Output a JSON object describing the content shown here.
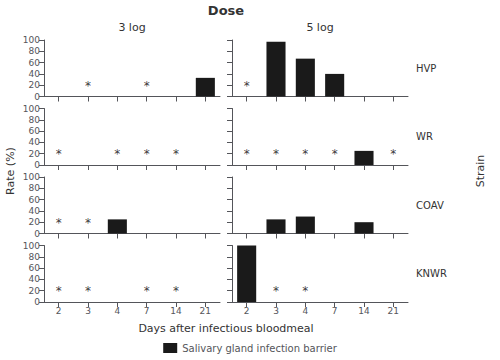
{
  "chart_data": {
    "type": "bar",
    "title": "Dose",
    "xlabel": "Days after infectious bloodmeal",
    "ylabel": "Rate (%)",
    "row_label": "Strain",
    "columns": [
      "3 log",
      "5 log"
    ],
    "rows": [
      "HVP",
      "WR",
      "COAV",
      "KNWR"
    ],
    "categories": [
      "2",
      "3",
      "4",
      "7",
      "14",
      "21"
    ],
    "series": [
      {
        "name": "Salivary gland infection barrier",
        "color": "#1a1a1a"
      }
    ],
    "ylim": [
      0,
      100
    ],
    "yticks": [
      0,
      20,
      40,
      60,
      80,
      100
    ],
    "grid": false,
    "legend": "bottom",
    "panels": [
      {
        "row": "HVP",
        "column": "3 log",
        "values": [
          0,
          0,
          0,
          0,
          0,
          33
        ],
        "annotations": [
          {
            "x": "3",
            "y": 8,
            "text": "*"
          },
          {
            "x": "7",
            "y": 8,
            "text": "*"
          }
        ]
      },
      {
        "row": "WR",
        "column": "3 log",
        "values": [
          0,
          0,
          0,
          0,
          0,
          0
        ],
        "annotations": [
          {
            "x": "2",
            "y": 8,
            "text": "*"
          },
          {
            "x": "4",
            "y": 8,
            "text": "*"
          },
          {
            "x": "7",
            "y": 8,
            "text": "*"
          },
          {
            "x": "14",
            "y": 8,
            "text": "*"
          }
        ]
      },
      {
        "row": "COAV",
        "column": "3 log",
        "values": [
          0,
          0,
          25,
          0,
          0,
          0
        ],
        "annotations": [
          {
            "x": "2",
            "y": 8,
            "text": "*"
          },
          {
            "x": "3",
            "y": 8,
            "text": "*"
          }
        ]
      },
      {
        "row": "KNWR",
        "column": "3 log",
        "values": [
          0,
          0,
          0,
          0,
          0,
          0
        ],
        "annotations": [
          {
            "x": "2",
            "y": 8,
            "text": "*"
          },
          {
            "x": "3",
            "y": 8,
            "text": "*"
          },
          {
            "x": "7",
            "y": 8,
            "text": "*"
          },
          {
            "x": "14",
            "y": 8,
            "text": "*"
          }
        ]
      },
      {
        "row": "HVP",
        "column": "5 log",
        "values": [
          0,
          97,
          67,
          40,
          0,
          0
        ],
        "annotations": [
          {
            "x": "2",
            "y": 8,
            "text": "*"
          }
        ]
      },
      {
        "row": "WR",
        "column": "5 log",
        "values": [
          0,
          0,
          0,
          0,
          25,
          0
        ],
        "annotations": [
          {
            "x": "2",
            "y": 8,
            "text": "*"
          },
          {
            "x": "3",
            "y": 8,
            "text": "*"
          },
          {
            "x": "4",
            "y": 8,
            "text": "*"
          },
          {
            "x": "7",
            "y": 8,
            "text": "*"
          },
          {
            "x": "21",
            "y": 8,
            "text": "*"
          }
        ]
      },
      {
        "row": "COAV",
        "column": "5 log",
        "values": [
          0,
          25,
          30,
          0,
          20,
          0
        ],
        "annotations": []
      },
      {
        "row": "KNWR",
        "column": "5 log",
        "values": [
          100,
          0,
          0,
          0,
          0,
          0
        ],
        "annotations": [
          {
            "x": "3",
            "y": 8,
            "text": "*"
          },
          {
            "x": "4",
            "y": 8,
            "text": "*"
          }
        ]
      }
    ]
  }
}
